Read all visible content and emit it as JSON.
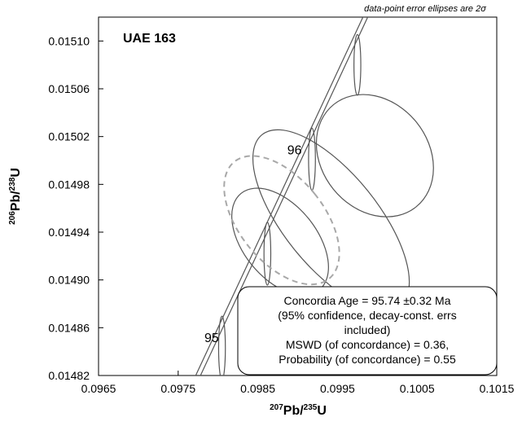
{
  "chart_data": {
    "type": "scatter",
    "title": "UAE 163",
    "note": "data-point error ellipses are 2σ",
    "xlabel": {
      "pre": "207",
      "base1": "Pb/",
      "sup2": "235",
      "base2": "U"
    },
    "ylabel": {
      "pre": "206",
      "base1": "Pb/",
      "sup2": "238",
      "base2": "U"
    },
    "xlim": [
      0.0965,
      0.1015
    ],
    "ylim": [
      0.01482,
      0.01512
    ],
    "x_ticks": [
      "0.0965",
      "0.0975",
      "0.0985",
      "0.0995",
      "0.1005",
      "0.1015"
    ],
    "y_ticks": [
      "0.01482",
      "0.01486",
      "0.01490",
      "0.01494",
      "0.01498",
      "0.01502",
      "0.01506",
      "0.01510"
    ],
    "concordia_age_labels": [
      {
        "label": "95",
        "x": 0.09792,
        "y": 0.014848
      },
      {
        "label": "96",
        "x": 0.09896,
        "y": 0.015005
      }
    ],
    "concordia_age_markers": [
      {
        "age": 95,
        "x": 0.09805,
        "y": 0.014843,
        "sx": 4.24e-05,
        "sy": 2.66e-05
      },
      {
        "age": 95.5,
        "x": 0.09862,
        "y": 0.014922,
        "sx": 4.26e-05,
        "sy": 2.63e-05
      },
      {
        "age": 96,
        "x": 0.09918,
        "y": 0.015001,
        "sx": 4.28e-05,
        "sy": 2.6e-05
      },
      {
        "age": 96.5,
        "x": 0.09975,
        "y": 0.01508,
        "sx": 4.3e-05,
        "sy": 2.54e-05
      }
    ],
    "error_ellipses": [
      {
        "cx": 0.09997,
        "cy": 0.015004,
        "sx": 0.00067,
        "sy": 5.5e-05
      },
      {
        "cx": 0.09942,
        "cy": 0.01495,
        "sx": 0.00059,
        "sy": 9.2e-05
      },
      {
        "cx": 0.09878,
        "cy": 0.014932,
        "sx": 0.00046,
        "sy": 5.2e-05
      }
    ],
    "concordia_ellipse": {
      "cx": 0.0988,
      "cy": 0.01495,
      "sx": 0.00053,
      "sy": 6.3e-05
    },
    "concordia_band": {
      "x0": 0.09775,
      "x1": 0.10055,
      "y0": 0.01482,
      "y1": 0.01522,
      "half_width": 3e-05
    },
    "result_box": [
      "Concordia Age = 95.74 ±0.32 Ma",
      "(95% confidence, decay-const. errs",
      "included)",
      "MSWD (of concordance) = 0.36,",
      "Probability (of concordance) = 0.55"
    ],
    "colors": {
      "ellipse": "#555555",
      "concordia_ellipse": "#a8a8a8",
      "axis": "#000000"
    }
  }
}
